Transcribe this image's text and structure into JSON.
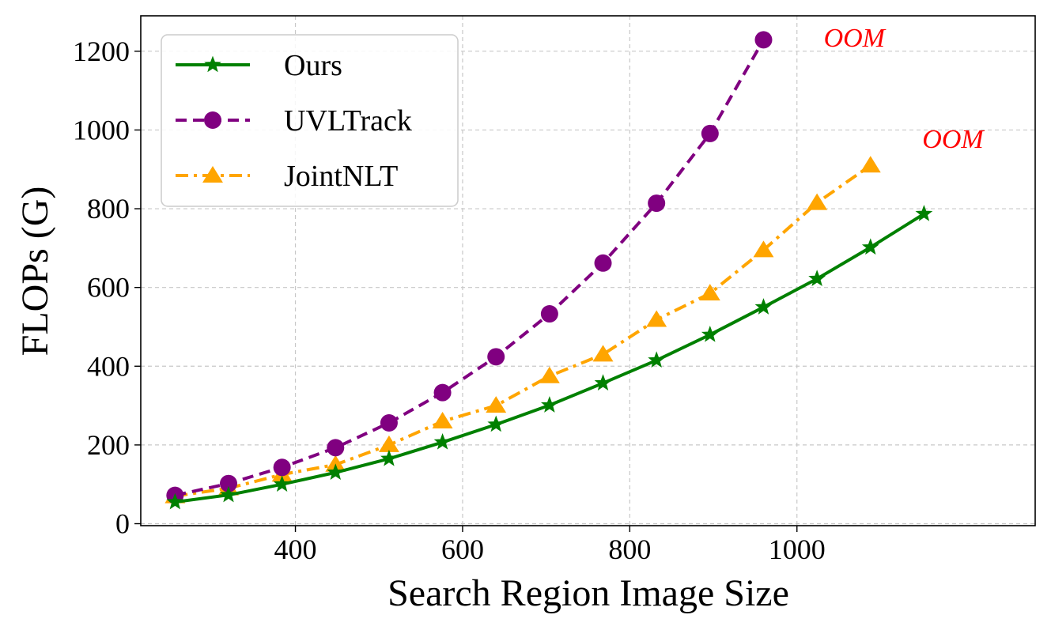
{
  "chart_data": {
    "type": "line",
    "title": "",
    "xlabel": "Search Region Image Size",
    "ylabel": "FLOPs (G)",
    "xlim": [
      215,
      1285
    ],
    "ylim": [
      -5,
      1290
    ],
    "xticks": [
      400,
      600,
      800,
      1000
    ],
    "yticks": [
      0,
      200,
      400,
      600,
      800,
      1000,
      1200
    ],
    "grid": true,
    "legend_position": "top-left",
    "series": [
      {
        "name": "Ours",
        "color": "#008000",
        "line_style": "solid",
        "marker": "star",
        "x": [
          256,
          320,
          384,
          448,
          512,
          576,
          640,
          704,
          768,
          832,
          896,
          960,
          1024,
          1088,
          1152
        ],
        "y": [
          55,
          73,
          100,
          130,
          165,
          207,
          252,
          301,
          357,
          415,
          480,
          550,
          622,
          702,
          787
        ]
      },
      {
        "name": "UVLTrack",
        "color": "#800080",
        "line_style": "dashed",
        "marker": "circle",
        "x": [
          256,
          320,
          384,
          448,
          512,
          576,
          640,
          704,
          768,
          832,
          896,
          960
        ],
        "y": [
          72,
          102,
          143,
          193,
          256,
          333,
          424,
          533,
          662,
          814,
          991,
          1229
        ]
      },
      {
        "name": "JointNLT",
        "color": "#FFA500",
        "line_style": "dashdot",
        "marker": "triangle",
        "x": [
          256,
          320,
          384,
          448,
          512,
          576,
          640,
          704,
          768,
          832,
          896,
          960,
          1024,
          1088
        ],
        "y": [
          70,
          90,
          125,
          150,
          200,
          260,
          300,
          375,
          430,
          518,
          585,
          695,
          815,
          910
        ]
      }
    ],
    "annotations": [
      {
        "text": "OOM",
        "x": 1032,
        "y": 1212,
        "color": "#FF0000"
      },
      {
        "text": "OOM",
        "x": 1150,
        "y": 955,
        "color": "#FF0000"
      }
    ]
  }
}
